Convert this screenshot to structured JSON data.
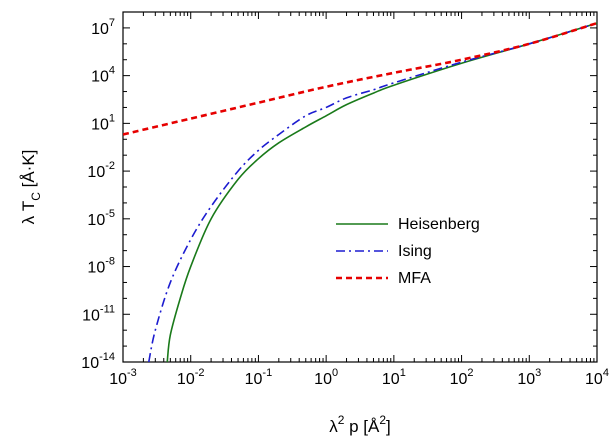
{
  "chart_data": {
    "type": "line",
    "xlabel": {
      "main": "λ",
      "sup": "2",
      "rest": " p [Å",
      "sup2": "2",
      "end": "]"
    },
    "ylabel": {
      "main": "λ T",
      "sub": "C",
      "rest": " [Å·K]"
    },
    "x_scale": "log",
    "y_scale": "log",
    "xlim": [
      0.001,
      10000
    ],
    "ylim": [
      1e-14,
      100000000.0
    ],
    "x_ticks": [
      {
        "base": "10",
        "exp": "-3"
      },
      {
        "base": "10",
        "exp": "-2"
      },
      {
        "base": "10",
        "exp": "-1"
      },
      {
        "base": "10",
        "exp": "0"
      },
      {
        "base": "10",
        "exp": "1"
      },
      {
        "base": "10",
        "exp": "2"
      },
      {
        "base": "10",
        "exp": "3"
      },
      {
        "base": "10",
        "exp": "4"
      }
    ],
    "y_ticks": [
      {
        "base": "10",
        "exp": "-14"
      },
      {
        "base": "10",
        "exp": "-11"
      },
      {
        "base": "10",
        "exp": "-8"
      },
      {
        "base": "10",
        "exp": "-5"
      },
      {
        "base": "10",
        "exp": "-2"
      },
      {
        "base": "10",
        "exp": "1"
      },
      {
        "base": "10",
        "exp": "4"
      },
      {
        "base": "10",
        "exp": "7"
      }
    ],
    "grid": false,
    "legend": "center-right",
    "series": [
      {
        "name": "Heisenberg",
        "color": "#1a7a1a",
        "style": "solid",
        "x": [
          0.0045,
          0.005,
          0.007,
          0.01,
          0.02,
          0.05,
          0.1,
          0.2,
          0.5,
          1,
          2,
          5,
          10,
          100,
          1000,
          10000
        ],
        "y": [
          1e-14,
          5e-13,
          1e-10,
          1e-08,
          1e-05,
          0.003,
          0.06,
          0.6,
          6,
          30,
          150,
          800,
          2500,
          60000,
          1000000,
          20000000
        ]
      },
      {
        "name": "Ising",
        "color": "#1c1cd0",
        "style": "dashdot",
        "x": [
          0.0024,
          0.003,
          0.005,
          0.01,
          0.02,
          0.05,
          0.1,
          0.2,
          0.5,
          1,
          2,
          5,
          10,
          100,
          1000,
          10000
        ],
        "y": [
          1e-14,
          1e-12,
          1e-09,
          5e-07,
          6e-05,
          0.01,
          0.2,
          2,
          30,
          100,
          400,
          1300,
          3500,
          70000,
          1000000,
          20000000
        ]
      },
      {
        "name": "MFA",
        "color": "#e60000",
        "style": "dashed",
        "x": [
          0.001,
          0.01,
          0.1,
          1,
          10,
          100,
          1000,
          10000
        ],
        "y": [
          2,
          20,
          200,
          2000,
          15000,
          100000,
          1000000,
          20000000
        ]
      }
    ]
  }
}
